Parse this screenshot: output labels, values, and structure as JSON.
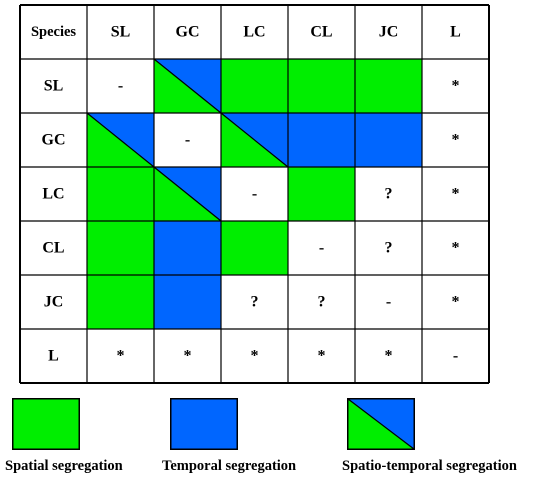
{
  "colors": {
    "spatial": "#00ee00",
    "temporal": "#0066ff",
    "empty": "#ffffff",
    "border": "#000000"
  },
  "matrix": {
    "corner_label": "Species",
    "columns": [
      "SL",
      "GC",
      "LC",
      "CL",
      "JC",
      "L"
    ],
    "rows": [
      {
        "label": "SL",
        "cells": [
          {
            "fill": "empty",
            "text": "-"
          },
          {
            "fill": "spatio-temporal",
            "text": ""
          },
          {
            "fill": "spatial",
            "text": ""
          },
          {
            "fill": "spatial",
            "text": ""
          },
          {
            "fill": "spatial",
            "text": ""
          },
          {
            "fill": "empty",
            "text": "*"
          }
        ]
      },
      {
        "label": "GC",
        "cells": [
          {
            "fill": "spatio-temporal",
            "text": ""
          },
          {
            "fill": "empty",
            "text": "-"
          },
          {
            "fill": "spatio-temporal",
            "text": ""
          },
          {
            "fill": "temporal",
            "text": ""
          },
          {
            "fill": "temporal",
            "text": ""
          },
          {
            "fill": "empty",
            "text": "*"
          }
        ]
      },
      {
        "label": "LC",
        "cells": [
          {
            "fill": "spatial",
            "text": ""
          },
          {
            "fill": "spatio-temporal",
            "text": ""
          },
          {
            "fill": "empty",
            "text": "-"
          },
          {
            "fill": "spatial",
            "text": ""
          },
          {
            "fill": "empty",
            "text": "?"
          },
          {
            "fill": "empty",
            "text": "*"
          }
        ]
      },
      {
        "label": "CL",
        "cells": [
          {
            "fill": "spatial",
            "text": ""
          },
          {
            "fill": "temporal",
            "text": ""
          },
          {
            "fill": "spatial",
            "text": ""
          },
          {
            "fill": "empty",
            "text": "-"
          },
          {
            "fill": "empty",
            "text": "?"
          },
          {
            "fill": "empty",
            "text": "*"
          }
        ]
      },
      {
        "label": "JC",
        "cells": [
          {
            "fill": "spatial",
            "text": ""
          },
          {
            "fill": "temporal",
            "text": ""
          },
          {
            "fill": "empty",
            "text": "?"
          },
          {
            "fill": "empty",
            "text": "?"
          },
          {
            "fill": "empty",
            "text": "-"
          },
          {
            "fill": "empty",
            "text": "*"
          }
        ]
      },
      {
        "label": "L",
        "cells": [
          {
            "fill": "empty",
            "text": "*"
          },
          {
            "fill": "empty",
            "text": "*"
          },
          {
            "fill": "empty",
            "text": "*"
          },
          {
            "fill": "empty",
            "text": "*"
          },
          {
            "fill": "empty",
            "text": "*"
          },
          {
            "fill": "empty",
            "text": "-"
          }
        ]
      }
    ]
  },
  "legend": {
    "items": [
      {
        "fill": "spatial",
        "label": "Spatial segregation"
      },
      {
        "fill": "temporal",
        "label": "Temporal segregation"
      },
      {
        "fill": "spatio-temporal",
        "label": "Spatio-temporal segregation"
      }
    ]
  }
}
